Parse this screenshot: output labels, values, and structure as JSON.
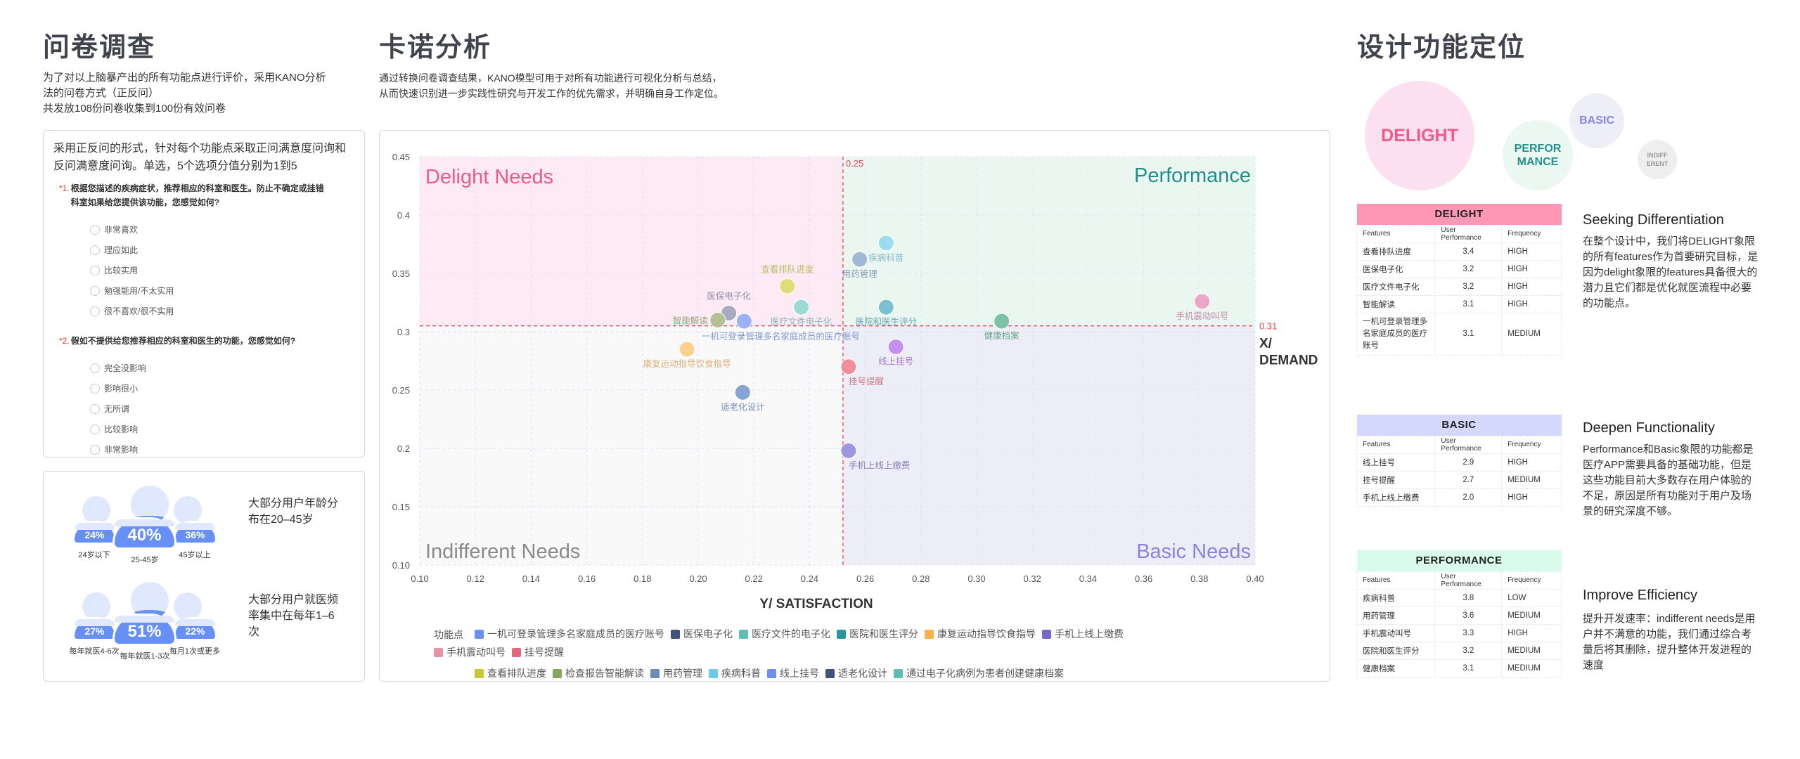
{
  "survey": {
    "title": "问卷调查",
    "desc": [
      "为了对以上脑暴产出的所有功能点进行评价，采用KANO分析",
      "法的问卷方式（正反问）",
      "共发放108份问卷收集到100份有效问卷"
    ],
    "intro": "采用正反问的形式，针对每个功能点采取正问满意度问询和反问满意度问询。单选，5个选项分值分别为1到5",
    "questions": [
      {
        "num": "1.",
        "text": "根据您描述的疾病症状，推荐相应的科室和医生。防止不确定或挂错科室如果给您提供该功能，您感觉如何?",
        "options": [
          "非常喜欢",
          "理应如此",
          "比较实用",
          "勉强能用/不太实用",
          "很不喜欢/很不实用"
        ]
      },
      {
        "num": "2.",
        "text": "假如不提供给您推荐相应的科室和医生的功能，您感觉如何?",
        "options": [
          "完全没影响",
          "影响很小",
          "无所谓",
          "比较影响",
          "非常影响"
        ]
      }
    ],
    "age": {
      "groups": [
        {
          "pct": "24%",
          "label": "24岁以下",
          "value": 24
        },
        {
          "pct": "40%",
          "label": "25-45岁",
          "value": 40
        },
        {
          "pct": "36%",
          "label": "45岁以上",
          "value": 36
        }
      ],
      "summary": "大部分用户年龄分布在20–45岁"
    },
    "freq": {
      "groups": [
        {
          "pct": "27%",
          "label": "每年就医4-6次",
          "value": 27
        },
        {
          "pct": "51%",
          "label": "每年就医1-3次",
          "value": 51
        },
        {
          "pct": "22%",
          "label": "每月1次或更多",
          "value": 22
        }
      ],
      "summary": "大部分用户就医频率集中在每年1–6次"
    }
  },
  "kano": {
    "title": "卡诺分析",
    "desc": [
      "通过转换问卷调查结果，KANO模型可用于对所有功能进行可视化分析与总结，",
      "从而快速识别进一步实践性研究与开发工作的优先需求，并明确自身工作定位。"
    ]
  },
  "chart_data": {
    "type": "scatter",
    "xlabel": "Y/ SATISFACTION",
    "ylabel": "X/ DEMAND",
    "xlim": [
      0.1,
      0.4
    ],
    "ylim": [
      0.1,
      0.45
    ],
    "xticks": [
      "0.10",
      "0.12",
      "0.14",
      "0.16",
      "0.18",
      "0.20",
      "0.22",
      "0.24",
      "0.26",
      "0.28",
      "0.30",
      "0.32",
      "0.34",
      "0.36",
      "0.38",
      "0.40"
    ],
    "yticks": [
      "0.10",
      "0.15",
      "0.2",
      "0.25",
      "0.3",
      "0.35",
      "0.4",
      "0.45"
    ],
    "grid": true,
    "threshold_x": {
      "value": 0.252,
      "label": "0.25"
    },
    "threshold_y": {
      "value": 0.305,
      "label": "0.31"
    },
    "quadrants": {
      "top_left": "Delight Needs",
      "top_right": "Performance",
      "bottom_left": "Indifferent Needs",
      "bottom_right": "Basic Needs"
    },
    "points": [
      {
        "name": "查看排队进度",
        "x": 0.232,
        "y": 0.339,
        "color": "#dedd78",
        "label_pos": "above"
      },
      {
        "name": "医保电子化",
        "x": 0.211,
        "y": 0.316,
        "color": "#a7abbf",
        "label_pos": "above"
      },
      {
        "name": "智能解读",
        "x": 0.207,
        "y": 0.31,
        "color": "#b3c295",
        "label_pos": "left"
      },
      {
        "name": "一机可登录管理多名家庭成员的医疗账号",
        "x": 0.2165,
        "y": 0.309,
        "color": "#9bb2fa",
        "label_pos": "below-wide"
      },
      {
        "name": "医疗文件电子化",
        "x": 0.237,
        "y": 0.321,
        "color": "#9bd9d3",
        "label_pos": "below"
      },
      {
        "name": "康复运动指导饮食指导",
        "x": 0.196,
        "y": 0.285,
        "color": "#fdd08e",
        "label_pos": "below"
      },
      {
        "name": "适老化设计",
        "x": 0.216,
        "y": 0.248,
        "color": "#87a4d6",
        "label_pos": "below"
      },
      {
        "name": "挂号提醒",
        "x": 0.254,
        "y": 0.27,
        "color": "#ef8f9c",
        "label_pos": "below-right"
      },
      {
        "name": "线上挂号",
        "x": 0.271,
        "y": 0.287,
        "color": "#c490ee",
        "label_pos": "below"
      },
      {
        "name": "手机上线上缴费",
        "x": 0.254,
        "y": 0.198,
        "color": "#9f96e2",
        "label_pos": "below-right"
      },
      {
        "name": "医院和医生评分",
        "x": 0.2675,
        "y": 0.321,
        "color": "#7cbfcf",
        "label_pos": "below"
      },
      {
        "name": "用药管理",
        "x": 0.258,
        "y": 0.362,
        "color": "#9fb8d3",
        "label_pos": "below"
      },
      {
        "name": "疾病科普",
        "x": 0.2675,
        "y": 0.376,
        "color": "#9ddcee",
        "label_pos": "below"
      },
      {
        "name": "健康档案",
        "x": 0.309,
        "y": 0.309,
        "color": "#7cc3a6",
        "label_pos": "below"
      },
      {
        "name": "手机震动叫号",
        "x": 0.381,
        "y": 0.326,
        "color": "#eba6c8",
        "label_pos": "below"
      }
    ],
    "legend_title": "功能点",
    "legend": [
      {
        "name": "一机可登录管理多名家庭成员的医疗账号",
        "color": "#6e8ff2"
      },
      {
        "name": "医保电子化",
        "color": "#3f527c"
      },
      {
        "name": "医疗文件的电子化",
        "color": "#5cbfb1"
      },
      {
        "name": "医院和医生评分",
        "color": "#28979c"
      },
      {
        "name": "康复运动指导饮食指导",
        "color": "#f9b14c"
      },
      {
        "name": "手机上线上缴费",
        "color": "#7768c9"
      },
      {
        "name": "手机震动叫号",
        "color": "#e892a6"
      },
      {
        "name": "挂号提醒",
        "color": "#e3677c"
      },
      {
        "name": "查看排队进度",
        "color": "#c5c932"
      },
      {
        "name": "检查报告智能解读",
        "color": "#86a65e"
      },
      {
        "name": "用药管理",
        "color": "#6b8db5"
      },
      {
        "name": "疾病科普",
        "color": "#6ccbe6"
      },
      {
        "name": "线上挂号",
        "color": "#6e8ff2"
      },
      {
        "name": "适老化设计",
        "color": "#3f527c"
      },
      {
        "name": "通过电子化病例为患者创建健康档案",
        "color": "#5cbfb1"
      }
    ]
  },
  "positioning": {
    "title": "设计功能定位",
    "bubbles": {
      "delight": "DELIGHT",
      "performance": "PERFOR MANCE",
      "basic": "BASIC",
      "indifferent": "INDIFF ERENT"
    },
    "columns": [
      "Features",
      "User Performance",
      "Frequency"
    ],
    "tables": [
      {
        "title": "DELIGHT",
        "color": "#fd97b5",
        "rows": [
          [
            "查看排队进度",
            "3.4",
            "HIGH"
          ],
          [
            "医保电子化",
            "3.2",
            "HIGH"
          ],
          [
            "医疗文件电子化",
            "3.2",
            "HIGH"
          ],
          [
            "智能解读",
            "3.1",
            "HIGH"
          ],
          [
            "一机可登录管理多名家庭成员的医疗账号",
            "3.1",
            "MEDIUM"
          ]
        ]
      },
      {
        "title": "BASIC",
        "color": "#d4d8fd",
        "rows": [
          [
            "线上挂号",
            "2.9",
            "HIGH"
          ],
          [
            "挂号提醒",
            "2.7",
            "MEDIUM"
          ],
          [
            "手机上线上缴费",
            "2.0",
            "HIGH"
          ]
        ]
      },
      {
        "title": "PERFORMANCE",
        "color": "#d8fbec",
        "rows": [
          [
            "疾病科普",
            "3.8",
            "LOW"
          ],
          [
            "用药管理",
            "3.6",
            "MEDIUM"
          ],
          [
            "手机震动叫号",
            "3.3",
            "HIGH"
          ],
          [
            "医院和医生评分",
            "3.2",
            "MEDIUM"
          ],
          [
            "健康档案",
            "3.1",
            "MEDIUM"
          ]
        ]
      }
    ],
    "notes": [
      {
        "title": "Seeking Differentiation",
        "text": "在整个设计中，我们将DELIGHT象限的所有features作为首要研究目标，是因为delight象限的features具备很大的潜力且它们都是优化就医流程中必要的功能点。"
      },
      {
        "title": "Deepen Functionality",
        "text": "Performance和Basic象限的功能都是医疗APP需要具备的基础功能，但是这些功能目前大多数存在用户体验的不足，原因是所有功能对于用户及场景的研究深度不够。"
      },
      {
        "title": "Improve Efficiency",
        "text": "提升开发速率：indifferent needs是用户并不满意的功能，我们通过综合考量后将其删除，提升整体开发进程的速度"
      }
    ]
  }
}
